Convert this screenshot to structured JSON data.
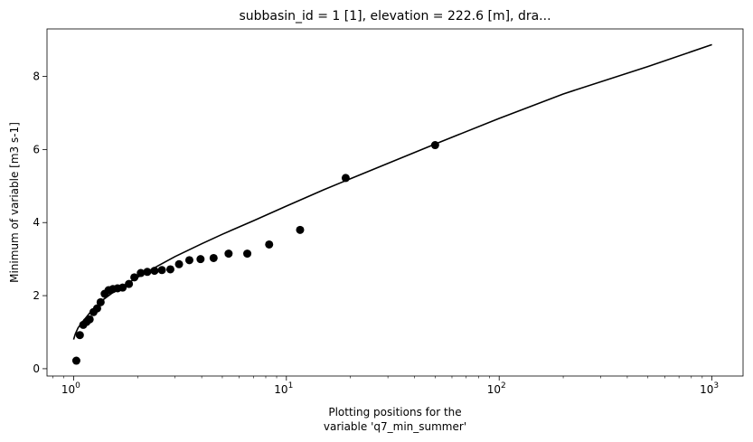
{
  "chart_data": {
    "type": "scatter",
    "title": "subbasin_id = 1 [1], elevation = 222.6 [m], dra...",
    "xlabel_lines": [
      "Plotting positions for the",
      "variable 'q7_min_summer'"
    ],
    "ylabel": "Minimum of variable [m3 s-1]",
    "xscale": "log",
    "xlim": [
      0.75,
      1400
    ],
    "ylim": [
      -0.2,
      9.3
    ],
    "xticks": [
      {
        "value": 1,
        "label": "10",
        "exp": "0"
      },
      {
        "value": 10,
        "label": "10",
        "exp": "1"
      },
      {
        "value": 100,
        "label": "10",
        "exp": "2"
      },
      {
        "value": 1000,
        "label": "10",
        "exp": "3"
      }
    ],
    "yticks": [
      0,
      2,
      4,
      6,
      8
    ],
    "grid": false,
    "series": [
      {
        "kind": "points",
        "color": "#000000",
        "points": [
          [
            1.03,
            0.22
          ],
          [
            1.07,
            0.92
          ],
          [
            1.11,
            1.2
          ],
          [
            1.15,
            1.28
          ],
          [
            1.19,
            1.35
          ],
          [
            1.24,
            1.55
          ],
          [
            1.29,
            1.65
          ],
          [
            1.34,
            1.82
          ],
          [
            1.4,
            2.05
          ],
          [
            1.46,
            2.15
          ],
          [
            1.53,
            2.18
          ],
          [
            1.61,
            2.2
          ],
          [
            1.7,
            2.22
          ],
          [
            1.82,
            2.32
          ],
          [
            1.93,
            2.5
          ],
          [
            2.07,
            2.62
          ],
          [
            2.22,
            2.65
          ],
          [
            2.4,
            2.68
          ],
          [
            2.6,
            2.7
          ],
          [
            2.85,
            2.72
          ],
          [
            3.13,
            2.86
          ],
          [
            3.5,
            2.97
          ],
          [
            3.95,
            3.0
          ],
          [
            4.55,
            3.03
          ],
          [
            5.35,
            3.15
          ],
          [
            6.55,
            3.15
          ],
          [
            8.3,
            3.4
          ],
          [
            11.6,
            3.8
          ],
          [
            19.0,
            5.22
          ],
          [
            50.0,
            6.12
          ]
        ]
      },
      {
        "kind": "line",
        "color": "#000000",
        "points": [
          [
            1.0,
            0.8
          ],
          [
            1.02,
            0.96
          ],
          [
            1.05,
            1.12
          ],
          [
            1.1,
            1.28
          ],
          [
            1.2,
            1.55
          ],
          [
            1.35,
            1.85
          ],
          [
            1.5,
            2.05
          ],
          [
            1.75,
            2.3
          ],
          [
            2.0,
            2.5
          ],
          [
            2.5,
            2.82
          ],
          [
            3.0,
            3.07
          ],
          [
            4.0,
            3.42
          ],
          [
            5.0,
            3.68
          ],
          [
            7.0,
            4.05
          ],
          [
            10.0,
            4.45
          ],
          [
            15.0,
            4.9
          ],
          [
            20.0,
            5.2
          ],
          [
            30.0,
            5.62
          ],
          [
            50.0,
            6.15
          ],
          [
            100.0,
            6.85
          ],
          [
            200.0,
            7.52
          ],
          [
            500.0,
            8.27
          ],
          [
            1000.0,
            8.87
          ]
        ]
      }
    ]
  }
}
